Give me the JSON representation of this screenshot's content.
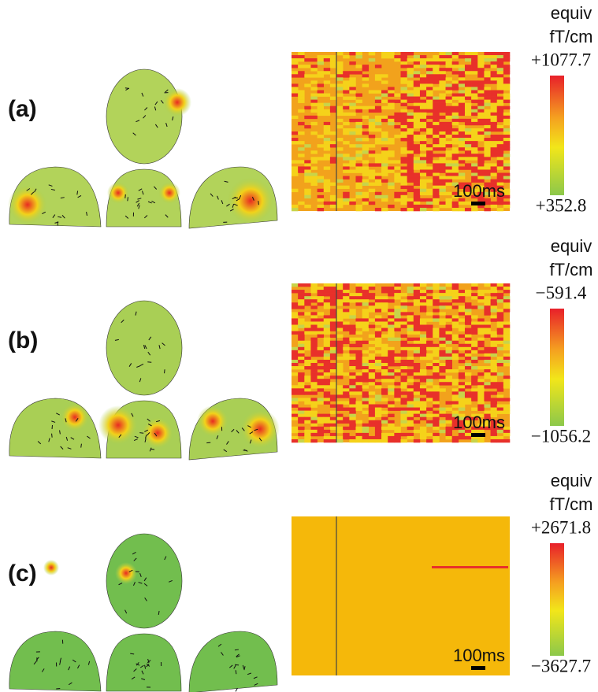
{
  "panels": [
    {
      "label": "(a)",
      "unit_line1": "equiv",
      "unit_line2": "fT/cm",
      "max_label": "+1077.7",
      "min_label": "+352.8",
      "scale_label": "100ms"
    },
    {
      "label": "(b)",
      "unit_line1": "equiv",
      "unit_line2": "fT/cm",
      "max_label": "−591.4",
      "min_label": "−1056.2",
      "scale_label": "100ms"
    },
    {
      "label": "(c)",
      "unit_line1": "equiv",
      "unit_line2": "fT/cm",
      "max_label": "+2671.8",
      "min_label": "−3627.7",
      "scale_label": "100ms"
    }
  ]
}
